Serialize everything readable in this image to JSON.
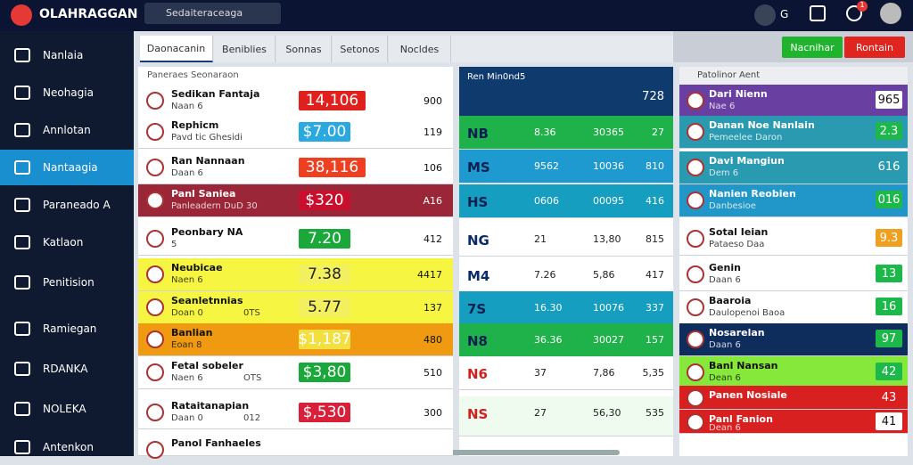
{
  "topbar": {
    "logo": "OLAHRAGGAN",
    "search": "Sedaiteraceaga",
    "user_initial": "G",
    "notifications": "1"
  },
  "sidebar": [
    "Nanlaia",
    "Neohagia",
    "Annlotan",
    "Nantaagia",
    "Paraneado A",
    "Katlaon",
    "Penitision",
    "Ramiegan",
    "RDANKA",
    "NOLEKA",
    "Antenkon"
  ],
  "tabs": [
    "Daonacanin",
    "Beniblies",
    "Sonnas",
    "Setonos",
    "Nocldes"
  ],
  "buttons": [
    "Nacnihar",
    "Rontain"
  ],
  "left_panel": {
    "header": "Paneraes Seonaraon",
    "rows": [
      {
        "name": "Sedikan Fantaja",
        "sub": "Naan 6",
        "badge": "14,106",
        "value": "900"
      },
      {
        "name": "Rephicm",
        "sub": "Pavd tic Ghesidi",
        "badge": "$7.00",
        "value": "119"
      },
      {
        "name": "Ran Nannaan",
        "sub": "Daan 6",
        "badge": "38,116",
        "value": "106"
      },
      {
        "name": "Panl Saniea",
        "sub": "Panleadern DuD 30",
        "badge": "$320",
        "value": "A16"
      },
      {
        "name": "Peonbary NA",
        "sub": "5",
        "badge": "7.20",
        "value": "412"
      },
      {
        "name": "Neubicae",
        "sub": "Naen 6",
        "badge": "7.38",
        "value": "4417"
      },
      {
        "name": "Seanletnnias",
        "sub": "Doan 0",
        "tag": "0TS",
        "badge": "5.77",
        "value": "137"
      },
      {
        "name": "Banlian",
        "sub": "Eoan 8",
        "badge": "$1,187",
        "value": "480"
      },
      {
        "name": "Fetal sobeler",
        "sub": "Naen 6",
        "tag": "OTS",
        "badge": "$3,80",
        "value": "510"
      },
      {
        "name": "Rataitanapian",
        "sub": "Daan 0",
        "tag": "012",
        "badge": "$,530",
        "value": "300"
      },
      {
        "name": "Panol Fanhaeles",
        "sub": "",
        "badge": "",
        "value": ""
      }
    ]
  },
  "middle_panel": {
    "header": "Ren Min0nd5",
    "header_value": "728",
    "rows": [
      {
        "code": "NB",
        "a": "8.36",
        "b": "30365",
        "c": "27"
      },
      {
        "code": "MS",
        "a": "9562",
        "b": "10036",
        "c": "810"
      },
      {
        "code": "HS",
        "a": "0606",
        "b": "00095",
        "c": "416"
      },
      {
        "code": "NG",
        "a": "21",
        "b": "13,80",
        "c": "815"
      },
      {
        "code": "M4",
        "a": "7.26",
        "b": "5,86",
        "c": "417"
      },
      {
        "code": "7S",
        "a": "16.30",
        "b": "10076",
        "c": "337"
      },
      {
        "code": "N8",
        "a": "36.36",
        "b": "30027",
        "c": "157"
      },
      {
        "code": "N6",
        "a": "37",
        "b": "7,86",
        "c": "5,35"
      },
      {
        "code": "NS",
        "a": "27",
        "b": "56,30",
        "c": "535"
      }
    ]
  },
  "right_panel": {
    "header": "Patolinor Aent",
    "rows": [
      {
        "name": "Dari Nienn",
        "sub": "Nae 6",
        "badge": "965"
      },
      {
        "name": "Danan Noe Nanlain",
        "sub": "Pemeelee Daron",
        "badge": "2.3"
      },
      {
        "name": "Davi Mangiun",
        "sub": "Dem 6",
        "badge": "616"
      },
      {
        "name": "Nanien Reobien",
        "sub": "Danbesioe",
        "badge": "016"
      },
      {
        "name": "Sotal Ieian",
        "sub": "Pataeso Daa",
        "badge": "9.3"
      },
      {
        "name": "Genin",
        "sub": "Daan 6",
        "badge": "13"
      },
      {
        "name": "Baaroia",
        "sub": "Daulopenoi Baoa",
        "badge": "16"
      },
      {
        "name": "Nosarelan",
        "sub": "Daan 6",
        "badge": "97"
      },
      {
        "name": "Banl Nansan",
        "sub": "Dean 6",
        "badge": "42"
      },
      {
        "name": "Panen Nosiale",
        "sub": "",
        "badge": "43"
      },
      {
        "name": "Panl Fanion",
        "sub": "Dean 6",
        "badge": "41"
      }
    ]
  }
}
